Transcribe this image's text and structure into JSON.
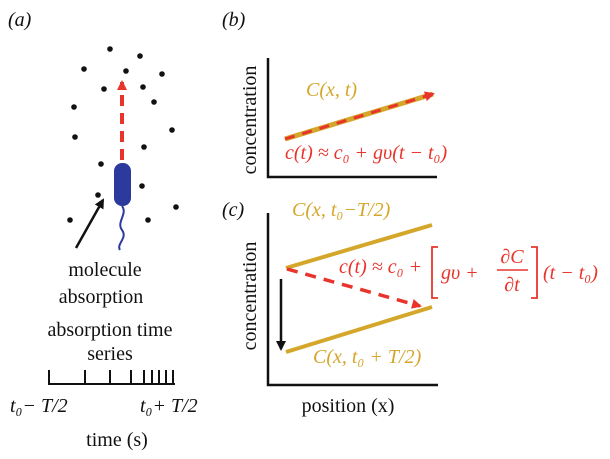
{
  "panel_a": {
    "label": "(a)",
    "molecule_label_line1": "molecule",
    "molecule_label_line2": "absorption",
    "series_label_line1": "absorption time",
    "series_label_line2": "series",
    "t_left": "t₀− T/2",
    "t_right": "t₀+ T/2",
    "time_label": "time (s)"
  },
  "panel_b": {
    "label": "(b)",
    "ylabel": "concentration",
    "curve_label": "C(x, t)",
    "equation": "c(t) ≈ c₀ + gυ(t − t₀)"
  },
  "panel_c": {
    "label": "(c)",
    "ylabel": "concentration",
    "top_label": "C(x, t₀−T/2)",
    "bottom_label": "C(x, t₀ + T/2)",
    "equation_left": "c(t) ≈ c₀ +",
    "equation_inner": "gυ +",
    "equation_frac_top": "∂C",
    "equation_frac_bottom": "∂t",
    "equation_right": "(t − t₀)",
    "xlabel": "position (x)"
  },
  "colors": {
    "gold": "#d4a62a",
    "red": "#e8342b",
    "bacterium": "#2b3a9c",
    "black": "#111111"
  }
}
